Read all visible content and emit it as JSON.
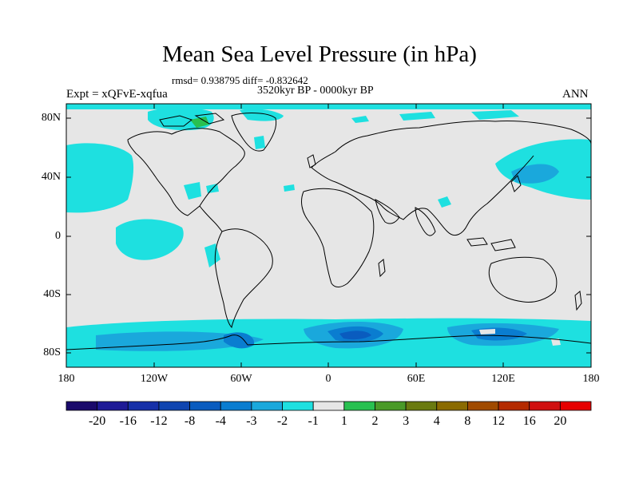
{
  "title": "Mean Sea Level Pressure (in hPa)",
  "stats": "rmsd= 0.938795 diff= -0.832642",
  "period": "3520kyr BP - 0000kyr BP",
  "experiment": "Expt = xQFvE-xqfua",
  "season": "ANN",
  "lat_labels": [
    "80N",
    "40N",
    "0",
    "40S",
    "80S"
  ],
  "lon_labels": [
    "180",
    "120W",
    "60W",
    "0",
    "60E",
    "120E",
    "180"
  ],
  "colorbar": {
    "labels": [
      "-20",
      "-16",
      "-12",
      "-8",
      "-4",
      "-3",
      "-2",
      "-1",
      "1",
      "2",
      "3",
      "4",
      "8",
      "12",
      "16",
      "20"
    ],
    "colors": [
      "#1a0a6b",
      "#1e1a96",
      "#1630a8",
      "#1045b0",
      "#0a5cbf",
      "#0a7dd0",
      "#1aa8dc",
      "#1ee0e0",
      "#e6e6e6",
      "#28c050",
      "#4a9a28",
      "#6a7a10",
      "#8a6a00",
      "#a04a00",
      "#b42a00",
      "#d01010",
      "#e60000"
    ]
  },
  "map": {
    "background": "#e6e6e6",
    "anomaly_colors": {
      "light": "#1ee0e0",
      "medium": "#1aa8dc",
      "strong": "#0a7dd0",
      "deep": "#0a5cbf",
      "deepest": "#1045b0"
    }
  }
}
